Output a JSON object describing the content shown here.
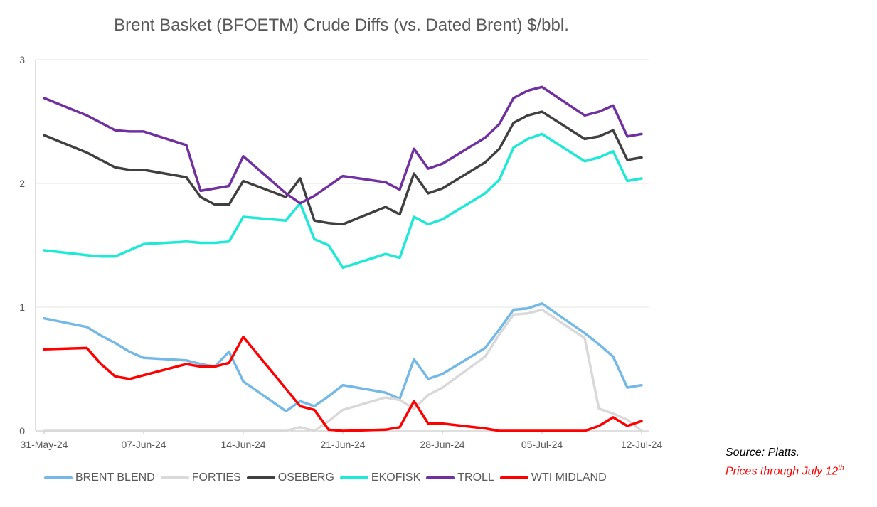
{
  "title": "Brent Basket (BFOETM) Crude Diffs (vs. Dated Brent) $/bbl.",
  "source": "Source: Platts.",
  "prices_note": "Prices through July 12",
  "prices_note_sup": "th",
  "chart_data": {
    "type": "line",
    "title": "Brent Basket (BFOETM) Crude Diffs (vs. Dated Brent) $/bbl.",
    "ylim": [
      0,
      3
    ],
    "yticks": [
      0,
      1,
      2,
      3
    ],
    "xlim": [
      "2024-05-31",
      "2024-07-12"
    ],
    "xticks": [
      "31-May-24",
      "07-Jun-24",
      "14-Jun-24",
      "21-Jun-24",
      "28-Jun-24",
      "05-Jul-24",
      "12-Jul-24"
    ],
    "grid": "horizontal",
    "legend_position": "bottom",
    "x": [
      "2024-05-31",
      "2024-06-03",
      "2024-06-04",
      "2024-06-05",
      "2024-06-06",
      "2024-06-07",
      "2024-06-10",
      "2024-06-11",
      "2024-06-12",
      "2024-06-13",
      "2024-06-14",
      "2024-06-17",
      "2024-06-18",
      "2024-06-19",
      "2024-06-20",
      "2024-06-21",
      "2024-06-24",
      "2024-06-25",
      "2024-06-26",
      "2024-06-27",
      "2024-06-28",
      "2024-07-01",
      "2024-07-02",
      "2024-07-03",
      "2024-07-04",
      "2024-07-05",
      "2024-07-08",
      "2024-07-09",
      "2024-07-10",
      "2024-07-11",
      "2024-07-12"
    ],
    "series": [
      {
        "name": "BRENT BLEND",
        "color": "#74b9e6",
        "values": [
          0.91,
          0.84,
          0.77,
          0.71,
          0.64,
          0.59,
          0.57,
          0.54,
          0.52,
          0.64,
          0.4,
          0.16,
          0.24,
          0.2,
          0.28,
          0.37,
          0.31,
          0.26,
          0.58,
          0.42,
          0.46,
          0.67,
          0.82,
          0.98,
          0.99,
          1.03,
          0.79,
          0.7,
          0.6,
          0.35,
          0.37
        ]
      },
      {
        "name": "FORTIES",
        "color": "#d9d9d9",
        "values": [
          0.0,
          0.0,
          0.0,
          0.0,
          0.0,
          0.0,
          0.0,
          0.0,
          0.0,
          0.0,
          0.0,
          0.0,
          0.03,
          0.0,
          0.08,
          0.17,
          0.27,
          0.25,
          0.18,
          0.29,
          0.35,
          0.6,
          0.78,
          0.94,
          0.95,
          0.98,
          0.75,
          0.18,
          0.14,
          0.09,
          0.0
        ]
      },
      {
        "name": "OSEBERG",
        "color": "#404040",
        "values": [
          2.39,
          2.25,
          2.19,
          2.13,
          2.11,
          2.11,
          2.05,
          1.89,
          1.83,
          1.83,
          2.02,
          1.89,
          2.04,
          1.7,
          1.68,
          1.67,
          1.81,
          1.75,
          2.08,
          1.92,
          1.96,
          2.17,
          2.28,
          2.49,
          2.55,
          2.58,
          2.36,
          2.38,
          2.43,
          2.19,
          2.21
        ]
      },
      {
        "name": "EKOFISK",
        "color": "#1de9d6",
        "values": [
          1.46,
          1.42,
          1.41,
          1.41,
          1.46,
          1.51,
          1.53,
          1.52,
          1.52,
          1.53,
          1.73,
          1.7,
          1.84,
          1.55,
          1.5,
          1.32,
          1.43,
          1.4,
          1.73,
          1.67,
          1.71,
          1.92,
          2.03,
          2.29,
          2.36,
          2.4,
          2.18,
          2.21,
          2.26,
          2.02,
          2.04
        ]
      },
      {
        "name": "TROLL",
        "color": "#7030a0",
        "values": [
          2.69,
          2.55,
          2.49,
          2.43,
          2.42,
          2.42,
          2.31,
          1.94,
          1.96,
          1.98,
          2.22,
          1.92,
          1.84,
          1.9,
          1.98,
          2.06,
          2.01,
          1.95,
          2.28,
          2.12,
          2.16,
          2.37,
          2.48,
          2.69,
          2.75,
          2.78,
          2.55,
          2.58,
          2.63,
          2.38,
          2.4
        ]
      },
      {
        "name": "WTI MIDLAND",
        "color": "#ff0000",
        "values": [
          0.66,
          0.67,
          0.54,
          0.44,
          0.42,
          0.45,
          0.54,
          0.52,
          0.52,
          0.55,
          0.76,
          0.34,
          0.2,
          0.17,
          0.01,
          0.0,
          0.01,
          0.03,
          0.24,
          0.06,
          0.06,
          0.02,
          0.0,
          0.0,
          0.0,
          0.0,
          0.0,
          0.04,
          0.11,
          0.04,
          0.08
        ]
      }
    ]
  }
}
